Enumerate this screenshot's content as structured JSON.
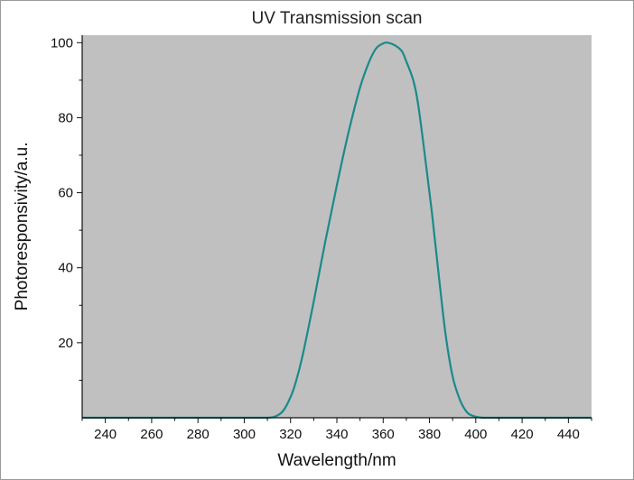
{
  "chart_data": {
    "type": "line",
    "title": "UV Transmission scan",
    "xlabel": "Wavelength/nm",
    "ylabel": "Photoresponsivity/a.u.",
    "xlim": [
      230,
      450
    ],
    "ylim": [
      0,
      102
    ],
    "xticks": [
      240,
      260,
      280,
      300,
      320,
      340,
      360,
      380,
      400,
      420,
      440
    ],
    "yticks": [
      20,
      40,
      60,
      80,
      100
    ],
    "grid": false,
    "plot_background": "#c0c0c0",
    "line_color": "#1a8a8a",
    "series": [
      {
        "x": [
          230,
          240,
          260,
          280,
          300,
          310,
          314,
          317,
          320,
          322,
          325,
          330,
          335,
          340,
          345,
          350,
          354,
          357,
          360,
          362,
          365,
          368,
          370,
          373,
          375,
          378,
          381,
          384,
          387,
          390,
          393,
          395,
          397,
          400,
          403,
          406,
          410,
          420,
          440,
          450
        ],
        "y": [
          0,
          0,
          0,
          0,
          0,
          0,
          0.5,
          2,
          5.5,
          9,
          16,
          31,
          47,
          62,
          76,
          88,
          95,
          98.5,
          99.8,
          100,
          99.3,
          97.8,
          95,
          90,
          84,
          70,
          55,
          38,
          22,
          11,
          5,
          2.5,
          1,
          0.3,
          0,
          0,
          0,
          0,
          0,
          0
        ]
      }
    ]
  }
}
